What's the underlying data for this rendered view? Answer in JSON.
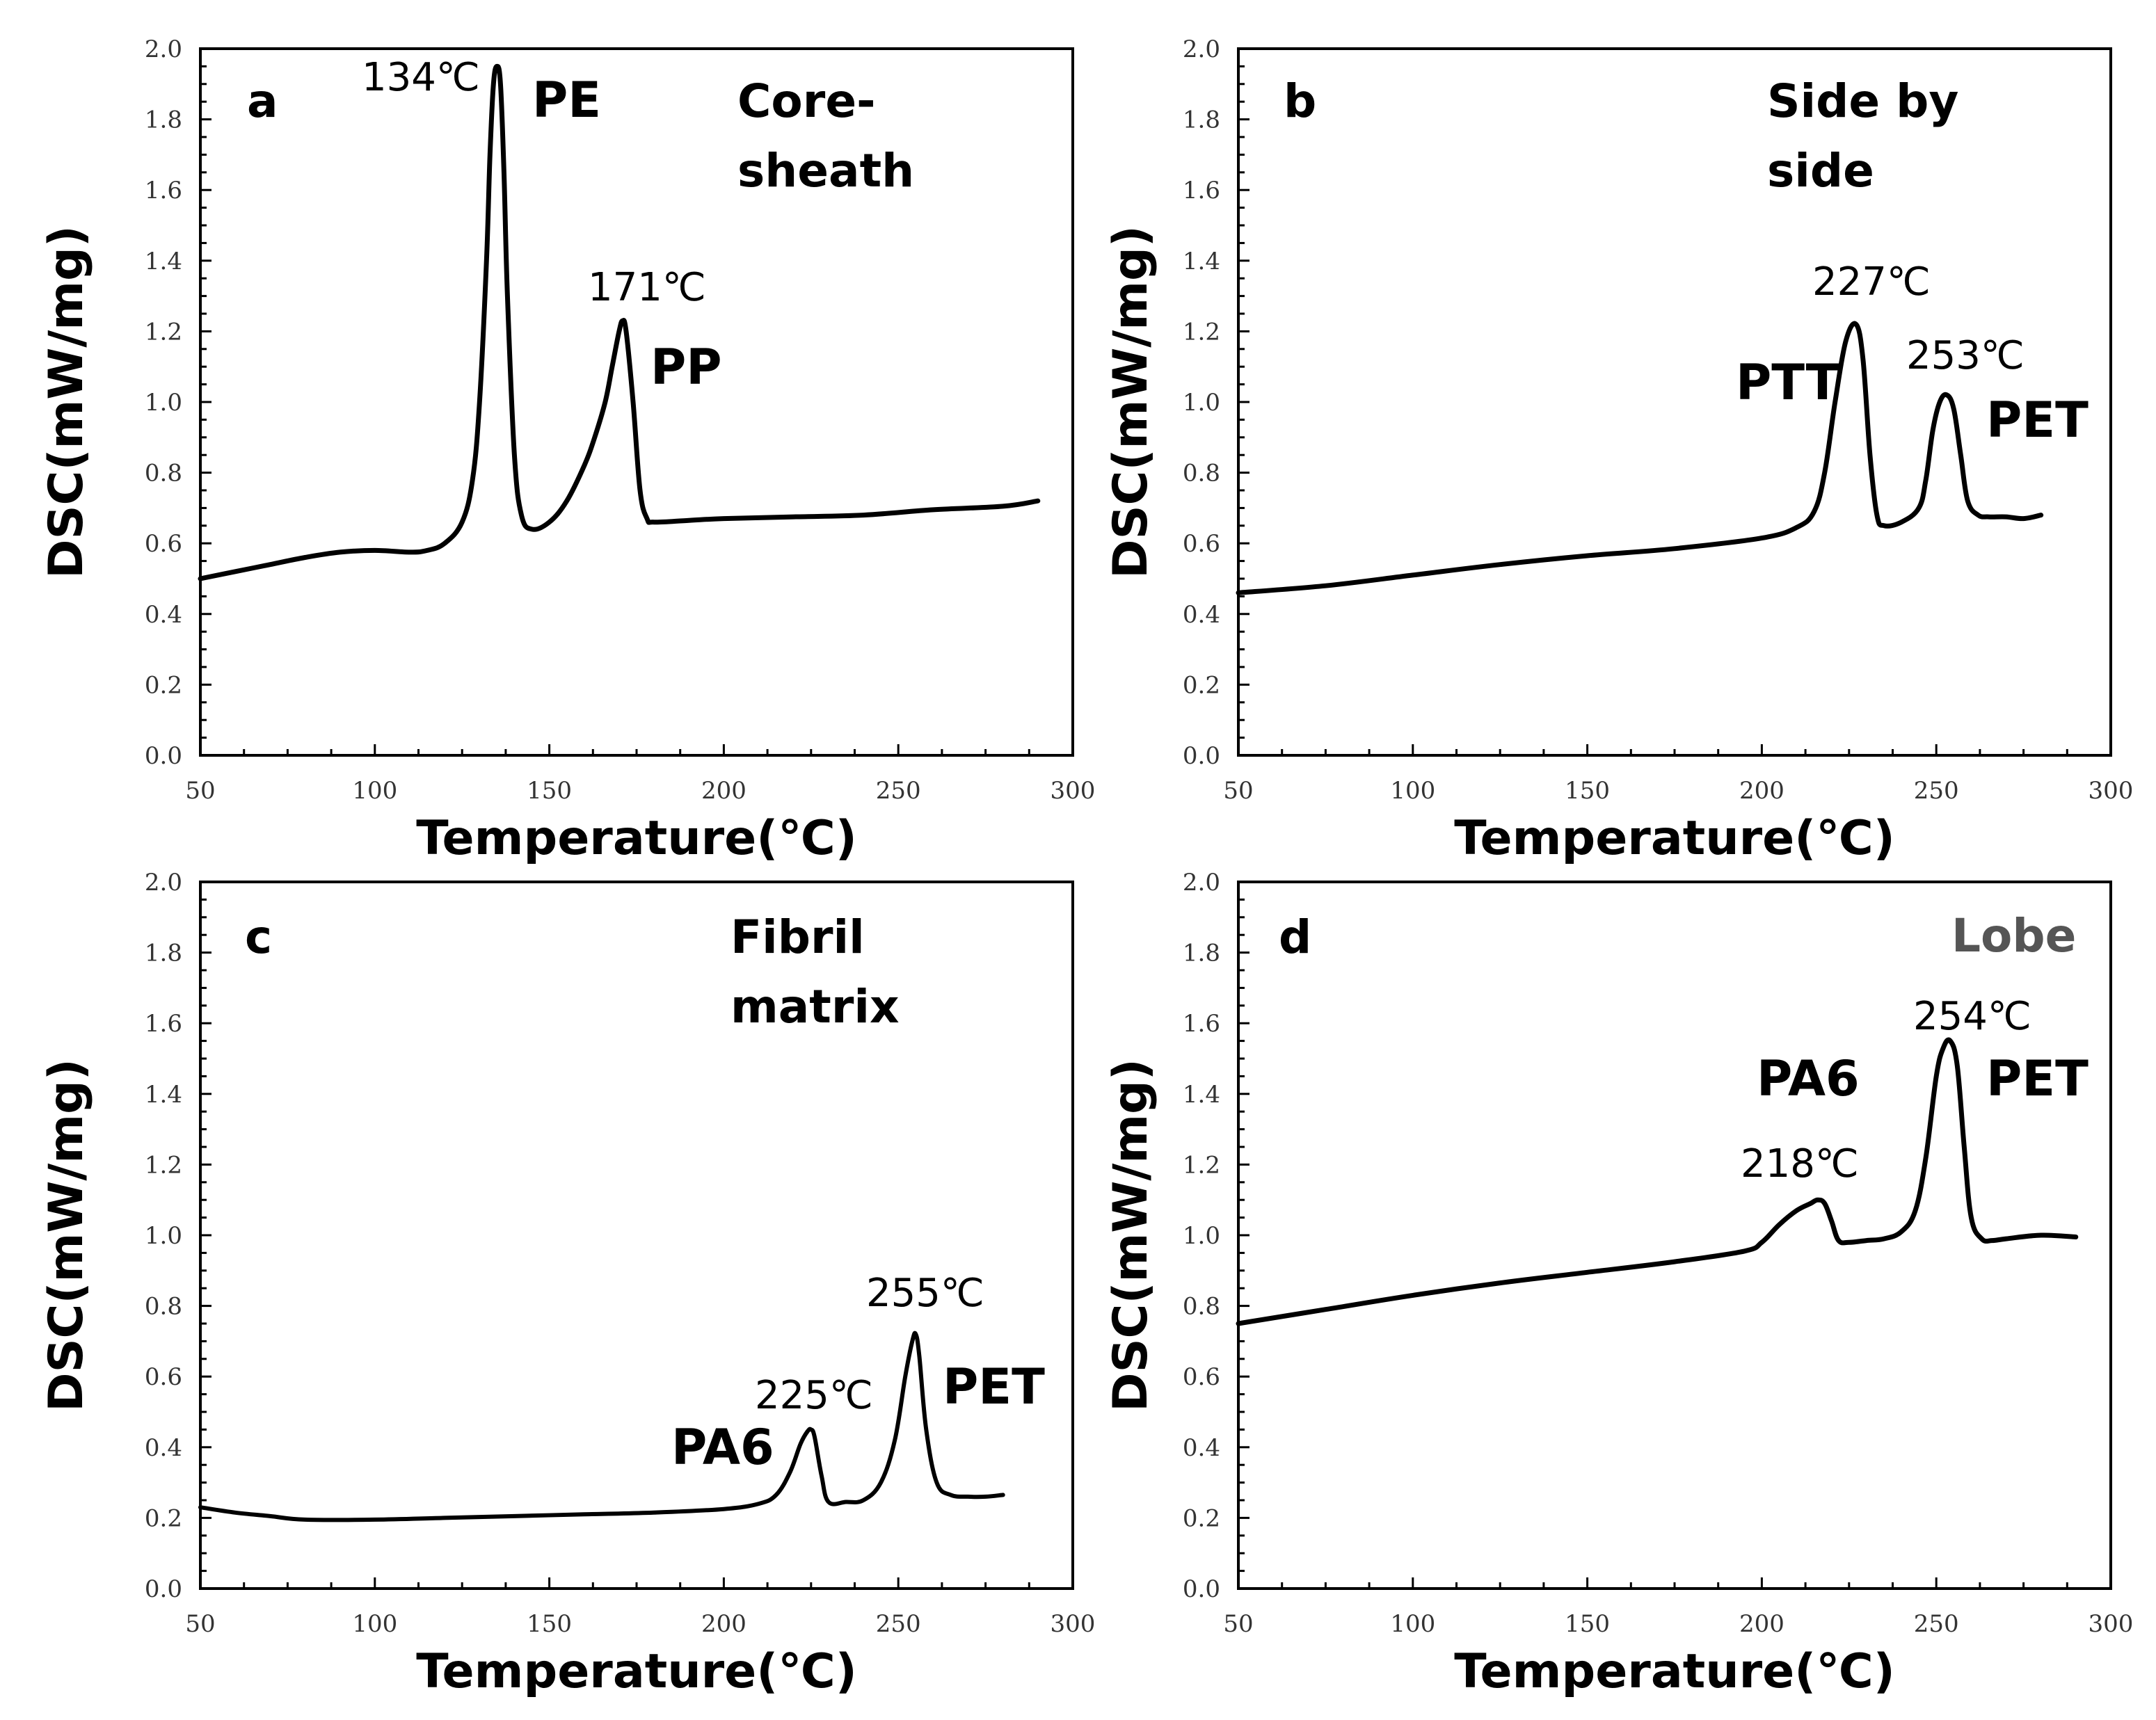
{
  "chart_data": [
    {
      "type": "line",
      "panel": "a",
      "sample": [
        "Core-",
        "sheath"
      ],
      "xlabel": "Temperature(℃)",
      "ylabel": "DSC(mW/mg)",
      "xlim": [
        50,
        300
      ],
      "ylim": [
        0.0,
        2.0
      ],
      "xticks": [
        "50",
        "100",
        "150",
        "200",
        "250",
        "300"
      ],
      "yticks": [
        "0.0",
        "0.2",
        "0.4",
        "0.6",
        "0.8",
        "1.0",
        "1.2",
        "1.4",
        "1.6",
        "1.8",
        "2.0"
      ],
      "grid": false,
      "series": [
        {
          "x": [
            50,
            60,
            70,
            80,
            90,
            100,
            110,
            115,
            120,
            125,
            128,
            130,
            132,
            133,
            134,
            135,
            136,
            137,
            138,
            140,
            142,
            145,
            150,
            155,
            160,
            163,
            166,
            168,
            170,
            171,
            172,
            174,
            176,
            178,
            180,
            190,
            200,
            220,
            240,
            260,
            280,
            290
          ],
          "y": [
            0.5,
            0.52,
            0.54,
            0.56,
            0.575,
            0.58,
            0.575,
            0.58,
            0.6,
            0.66,
            0.78,
            1.0,
            1.4,
            1.7,
            1.9,
            1.95,
            1.9,
            1.65,
            1.3,
            0.85,
            0.68,
            0.64,
            0.66,
            0.72,
            0.82,
            0.9,
            1.0,
            1.1,
            1.2,
            1.23,
            1.2,
            1.0,
            0.75,
            0.67,
            0.66,
            0.665,
            0.67,
            0.675,
            0.68,
            0.695,
            0.705,
            0.72
          ]
        }
      ],
      "peaks": [
        {
          "temp_label": "134℃",
          "name": "PE",
          "x": 134,
          "y": 1.95
        },
        {
          "temp_label": "171℃",
          "name": "PP",
          "x": 171,
          "y": 1.23
        }
      ]
    },
    {
      "type": "line",
      "panel": "b",
      "sample": [
        "Side by",
        "side"
      ],
      "xlabel": "Temperature(℃)",
      "ylabel": "DSC(mW/mg)",
      "xlim": [
        50,
        300
      ],
      "ylim": [
        0.0,
        2.0
      ],
      "xticks": [
        "50",
        "100",
        "150",
        "200",
        "250",
        "300"
      ],
      "yticks": [
        "0.0",
        "0.2",
        "0.4",
        "0.6",
        "0.8",
        "1.0",
        "1.2",
        "1.4",
        "1.6",
        "1.8",
        "2.0"
      ],
      "grid": false,
      "series": [
        {
          "x": [
            50,
            75,
            100,
            125,
            150,
            175,
            200,
            210,
            215,
            218,
            221,
            224,
            227,
            229,
            231,
            233,
            235,
            240,
            245,
            247,
            249,
            251,
            253,
            255,
            257,
            259,
            262,
            265,
            270,
            275,
            280
          ],
          "y": [
            0.46,
            0.48,
            0.51,
            0.54,
            0.565,
            0.585,
            0.615,
            0.645,
            0.69,
            0.8,
            1.0,
            1.17,
            1.22,
            1.12,
            0.85,
            0.68,
            0.65,
            0.66,
            0.7,
            0.78,
            0.92,
            1.0,
            1.02,
            0.98,
            0.85,
            0.72,
            0.68,
            0.675,
            0.675,
            0.67,
            0.68
          ]
        }
      ],
      "peaks": [
        {
          "temp_label": "227℃",
          "name": "PTT",
          "x": 227,
          "y": 1.22
        },
        {
          "temp_label": "253℃",
          "name": "PET",
          "x": 253,
          "y": 1.02
        }
      ]
    },
    {
      "type": "line",
      "panel": "c",
      "sample": [
        "Fibril",
        "matrix"
      ],
      "xlabel": "Temperature(℃)",
      "ylabel": "DSC(mW/mg)",
      "xlim": [
        50,
        300
      ],
      "ylim": [
        0.0,
        2.0
      ],
      "xticks": [
        "50",
        "100",
        "150",
        "200",
        "250",
        "300"
      ],
      "yticks": [
        "0.0",
        "0.2",
        "0.4",
        "0.6",
        "0.8",
        "1.0",
        "1.2",
        "1.4",
        "1.6",
        "1.8",
        "2.0"
      ],
      "grid": false,
      "series": [
        {
          "x": [
            50,
            60,
            70,
            80,
            100,
            120,
            140,
            160,
            180,
            200,
            210,
            215,
            219,
            222,
            224,
            225,
            226,
            228,
            230,
            235,
            240,
            245,
            249,
            252,
            254,
            255,
            256,
            258,
            261,
            265,
            270,
            275,
            280
          ],
          "y": [
            0.23,
            0.215,
            0.205,
            0.195,
            0.195,
            0.2,
            0.205,
            0.21,
            0.215,
            0.225,
            0.24,
            0.265,
            0.33,
            0.41,
            0.445,
            0.45,
            0.43,
            0.32,
            0.245,
            0.245,
            0.25,
            0.3,
            0.42,
            0.6,
            0.7,
            0.72,
            0.66,
            0.45,
            0.3,
            0.265,
            0.26,
            0.26,
            0.265
          ]
        }
      ],
      "peaks": [
        {
          "temp_label": "225℃",
          "name": "PA6",
          "x": 225,
          "y": 0.45
        },
        {
          "temp_label": "255℃",
          "name": "PET",
          "x": 255,
          "y": 0.72
        }
      ]
    },
    {
      "type": "line",
      "panel": "d",
      "sample": [
        "Lobe"
      ],
      "xlabel": "Temperature(℃)",
      "ylabel": "DSC(mW/mg)",
      "xlim": [
        50,
        300
      ],
      "ylim": [
        0.0,
        2.0
      ],
      "xticks": [
        "50",
        "100",
        "150",
        "200",
        "250",
        "300"
      ],
      "yticks": [
        "0.0",
        "0.2",
        "0.4",
        "0.6",
        "0.8",
        "1.0",
        "1.2",
        "1.4",
        "1.6",
        "1.8",
        "2.0"
      ],
      "grid": false,
      "series": [
        {
          "x": [
            50,
            75,
            100,
            125,
            150,
            175,
            195,
            200,
            205,
            210,
            214,
            216,
            218,
            220,
            222,
            225,
            230,
            235,
            240,
            244,
            247,
            250,
            252,
            254,
            256,
            258,
            260,
            263,
            266,
            270,
            280,
            290
          ],
          "y": [
            0.75,
            0.79,
            0.83,
            0.865,
            0.895,
            0.925,
            0.955,
            0.98,
            1.03,
            1.07,
            1.09,
            1.1,
            1.09,
            1.04,
            0.985,
            0.98,
            0.985,
            0.99,
            1.01,
            1.07,
            1.22,
            1.45,
            1.53,
            1.55,
            1.48,
            1.25,
            1.05,
            0.99,
            0.985,
            0.99,
            1.0,
            0.995
          ]
        }
      ],
      "peaks": [
        {
          "temp_label": "218℃",
          "name": "PA6",
          "x": 218,
          "y": 1.1
        },
        {
          "temp_label": "254℃",
          "name": "PET",
          "x": 254,
          "y": 1.55
        }
      ]
    }
  ]
}
